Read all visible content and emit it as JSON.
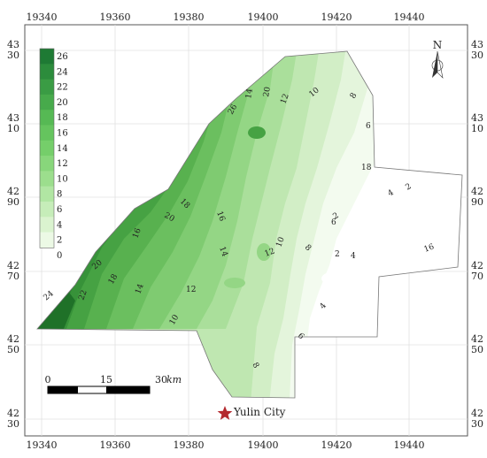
{
  "x_ticks_top": [
    "19340",
    "19360",
    "19380",
    "19400",
    "19420",
    "19440"
  ],
  "x_ticks_bottom": [
    "19340",
    "19360",
    "19380",
    "19400",
    "19420",
    "19440"
  ],
  "y_ticks": [
    {
      "top": "43",
      "bottom": "30"
    },
    {
      "top": "43",
      "bottom": "10"
    },
    {
      "top": "42",
      "bottom": "90"
    },
    {
      "top": "42",
      "bottom": "70"
    },
    {
      "top": "42",
      "bottom": "50"
    },
    {
      "top": "42",
      "bottom": "30"
    }
  ],
  "legend": {
    "values": [
      "26",
      "24",
      "22",
      "20",
      "18",
      "16",
      "14",
      "12",
      "10",
      "8",
      "6",
      "4",
      "2",
      "0"
    ],
    "colors": [
      "#1e7a34",
      "#2c8c3c",
      "#3a9c44",
      "#47aa4b",
      "#56b954",
      "#65c45e",
      "#75ce6a",
      "#88d67b",
      "#9cde8d",
      "#b1e6a3",
      "#c6edb9",
      "#daf3cf",
      "#ecf9e5",
      "#ffffff"
    ]
  },
  "north_arrow": {
    "label": "N",
    "icon": "north-arrow-icon"
  },
  "scale_bar": {
    "labels": [
      "0",
      "15",
      "30"
    ],
    "unit": "km"
  },
  "city": {
    "name": "Yulin City",
    "icon": "star-icon",
    "color": "#b3282d"
  },
  "contour_labels": [
    "24",
    "22",
    "20",
    "18",
    "16",
    "14",
    "12",
    "10",
    "8",
    "6",
    "4",
    "2",
    "20",
    "18",
    "16",
    "14",
    "12",
    "10",
    "8",
    "6",
    "4",
    "2",
    "26",
    "12",
    "10",
    "8",
    "6",
    "4",
    "2",
    "16",
    "18",
    "20",
    "14",
    "10",
    "8",
    "6",
    "4",
    "2",
    "22",
    "4",
    "2",
    "6",
    "8",
    "12",
    "16",
    "18",
    "20",
    "14",
    "12"
  ]
}
